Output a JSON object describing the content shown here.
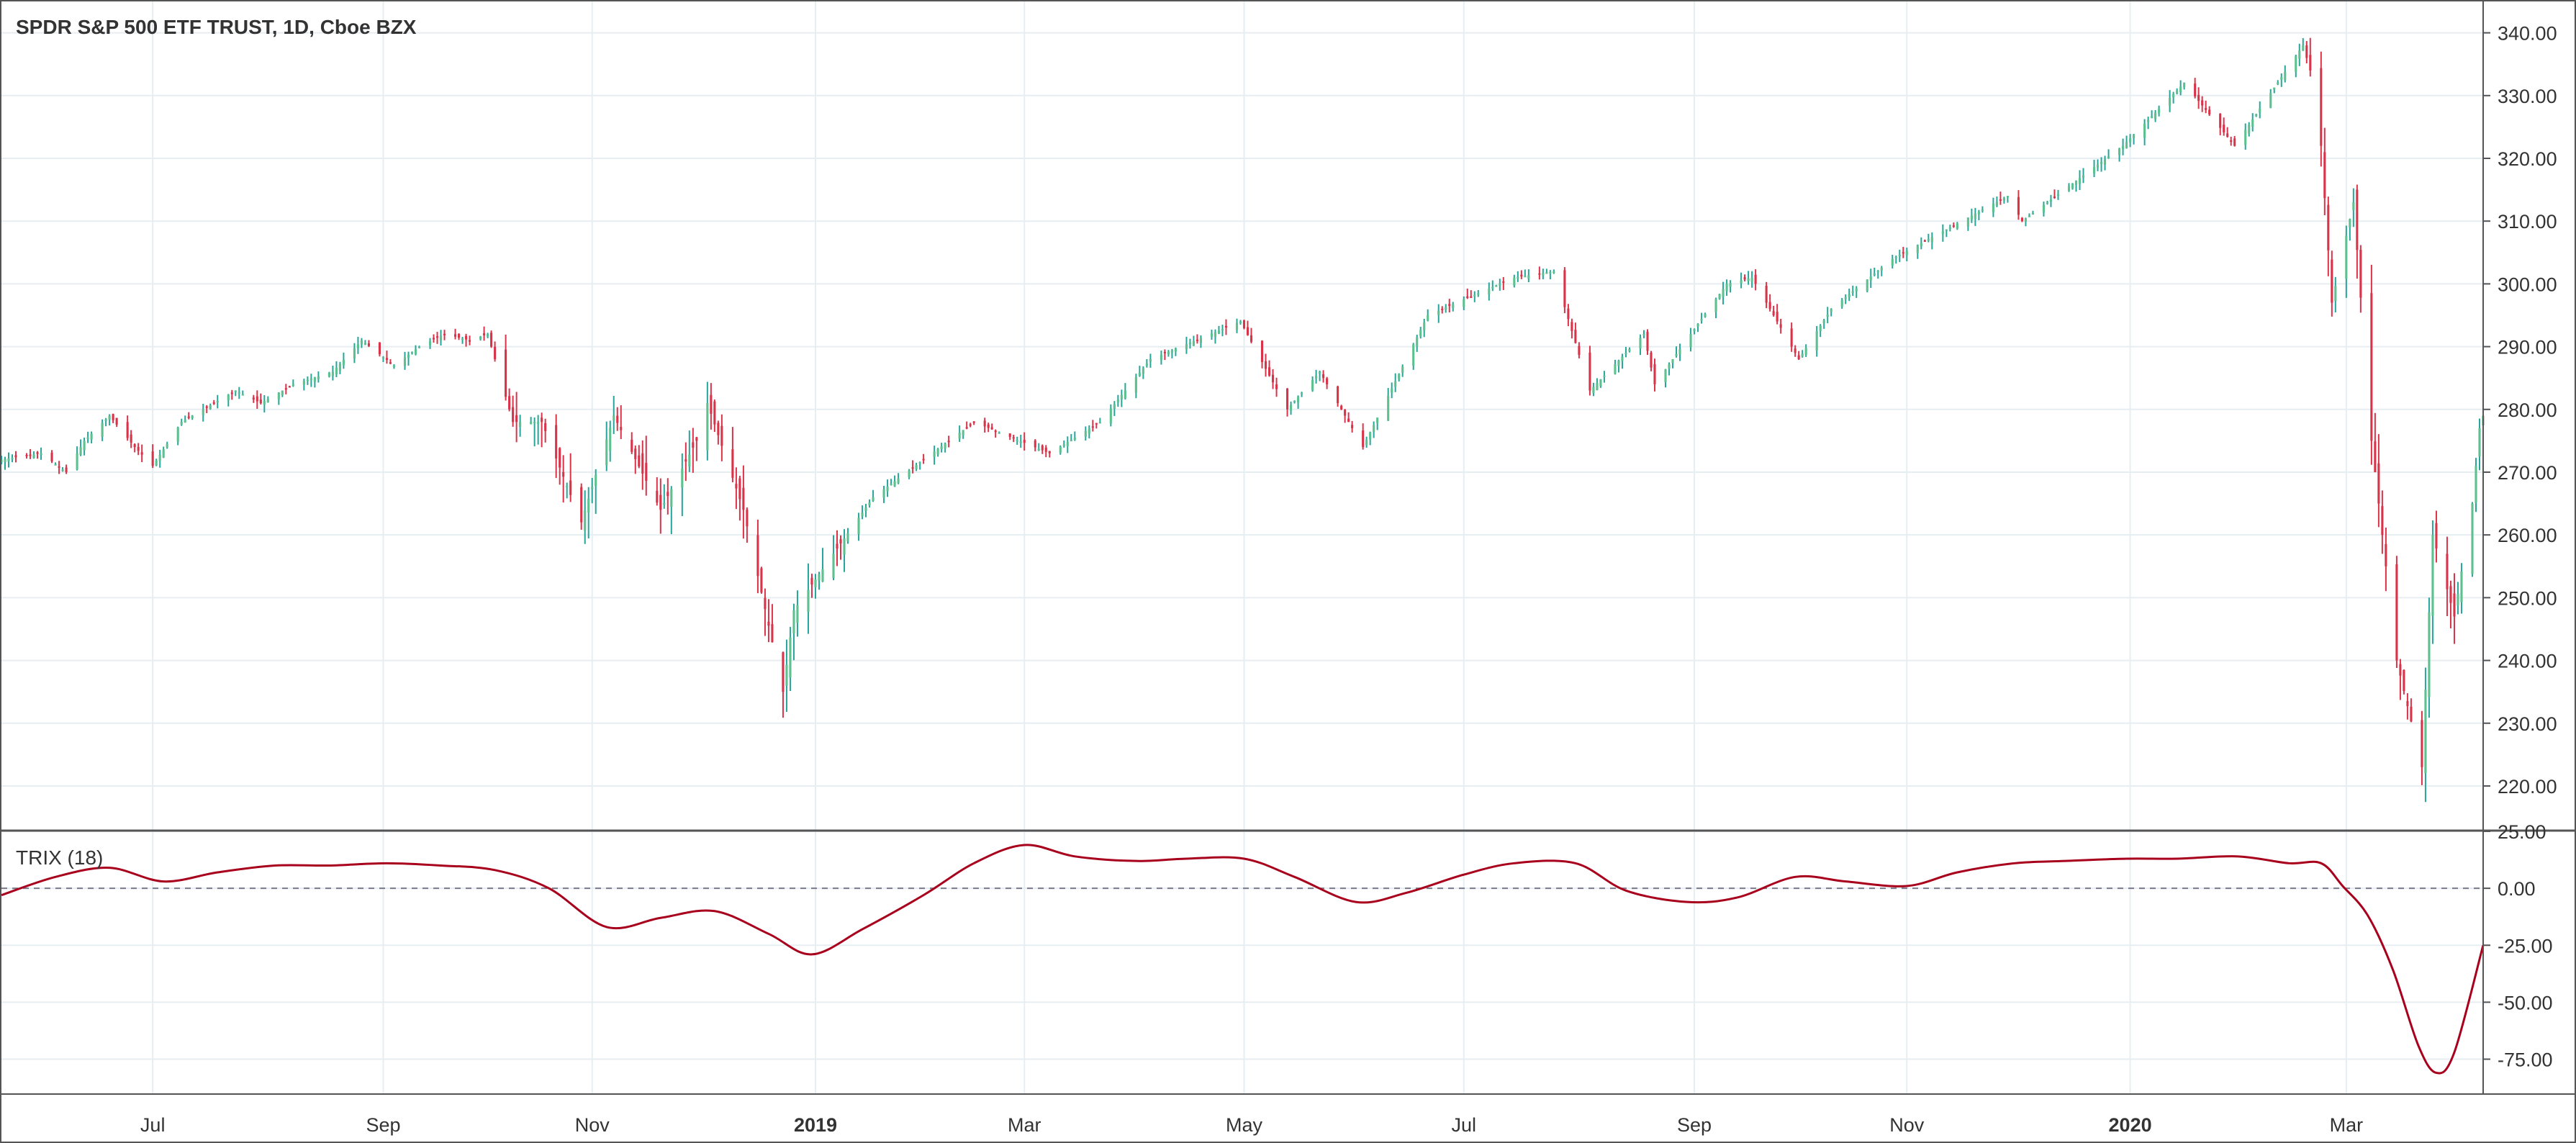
{
  "title": "SPDR S&P 500 ETF TRUST, 1D, Cboe BZX",
  "indicator_label": "TRIX (18)",
  "colors": {
    "up": "#26a69a",
    "up_fill": "#5cc08f",
    "down": "#d9334a",
    "trix_line": "#a8001c",
    "grid": "#e6eef2",
    "axis_text": "#333333",
    "border": "#555555",
    "zero_line": "#7a7a8a"
  },
  "chart_data": [
    {
      "type": "candlestick",
      "title": "SPDR S&P 500 ETF TRUST, 1D, Cboe BZX",
      "x_range": [
        "2018-05-21",
        "2020-04-09"
      ],
      "ylim": [
        213,
        345
      ],
      "y_ticks": [
        "220.00",
        "230.00",
        "240.00",
        "250.00",
        "260.00",
        "270.00",
        "280.00",
        "290.00",
        "300.00",
        "310.00",
        "320.00",
        "330.00",
        "340.00"
      ],
      "x_ticks": [
        {
          "label": "Jul",
          "date": "2018-07-02",
          "bold": false
        },
        {
          "label": "Sep",
          "date": "2018-09-04",
          "bold": false
        },
        {
          "label": "Nov",
          "date": "2018-11-01",
          "bold": false
        },
        {
          "label": "2019",
          "date": "2019-01-02",
          "bold": true
        },
        {
          "label": "Mar",
          "date": "2019-03-01",
          "bold": false
        },
        {
          "label": "May",
          "date": "2019-05-01",
          "bold": false
        },
        {
          "label": "Jul",
          "date": "2019-07-01",
          "bold": false
        },
        {
          "label": "Sep",
          "date": "2019-09-03",
          "bold": false
        },
        {
          "label": "Nov",
          "date": "2019-11-01",
          "bold": false
        },
        {
          "label": "2020",
          "date": "2020-01-02",
          "bold": true
        },
        {
          "label": "Mar",
          "date": "2020-03-02",
          "bold": false
        }
      ],
      "close_path": [
        [
          "2018-05-21",
          272
        ],
        [
          "2018-06-01",
          273
        ],
        [
          "2018-06-08",
          270
        ],
        [
          "2018-06-13",
          275
        ],
        [
          "2018-06-20",
          279
        ],
        [
          "2018-06-27",
          274
        ],
        [
          "2018-07-02",
          271
        ],
        [
          "2018-07-10",
          278
        ],
        [
          "2018-07-25",
          283
        ],
        [
          "2018-08-01",
          281
        ],
        [
          "2018-08-10",
          284
        ],
        [
          "2018-08-21",
          286
        ],
        [
          "2018-08-29",
          291
        ],
        [
          "2018-09-07",
          287
        ],
        [
          "2018-09-14",
          290
        ],
        [
          "2018-09-21",
          292
        ],
        [
          "2018-09-28",
          291
        ],
        [
          "2018-10-03",
          292
        ],
        [
          "2018-10-10",
          278
        ],
        [
          "2018-10-18",
          278
        ],
        [
          "2018-10-29",
          262
        ],
        [
          "2018-11-07",
          279
        ],
        [
          "2018-11-20",
          264
        ],
        [
          "2018-11-30",
          275
        ],
        [
          "2018-12-03",
          281
        ],
        [
          "2018-12-13",
          264
        ],
        [
          "2018-12-24",
          235
        ],
        [
          "2018-12-27",
          248
        ],
        [
          "2019-01-18",
          266
        ],
        [
          "2019-02-15",
          278
        ],
        [
          "2019-03-08",
          273
        ],
        [
          "2019-03-22",
          278
        ],
        [
          "2019-04-05",
          288
        ],
        [
          "2019-04-30",
          294
        ],
        [
          "2019-05-13",
          280
        ],
        [
          "2019-05-22",
          286
        ],
        [
          "2019-06-03",
          274
        ],
        [
          "2019-06-21",
          295
        ],
        [
          "2019-07-15",
          301
        ],
        [
          "2019-07-26",
          302
        ],
        [
          "2019-08-05",
          283
        ],
        [
          "2019-08-20",
          292
        ],
        [
          "2019-08-23",
          284
        ],
        [
          "2019-09-12",
          300
        ],
        [
          "2019-09-19",
          301
        ],
        [
          "2019-10-02",
          288
        ],
        [
          "2019-10-11",
          296
        ],
        [
          "2019-10-28",
          304
        ],
        [
          "2019-11-29",
          314
        ],
        [
          "2019-12-03",
          310
        ],
        [
          "2019-12-31",
          322
        ],
        [
          "2020-01-17",
          332
        ],
        [
          "2020-01-31",
          322
        ],
        [
          "2020-02-19",
          338
        ],
        [
          "2020-02-21",
          334
        ],
        [
          "2020-02-24",
          322
        ],
        [
          "2020-02-27",
          297
        ],
        [
          "2020-03-04",
          313
        ],
        [
          "2020-03-09",
          275
        ],
        [
          "2020-03-16",
          240
        ],
        [
          "2020-03-23",
          223
        ],
        [
          "2020-03-26",
          260
        ],
        [
          "2020-04-01",
          247
        ],
        [
          "2020-04-06",
          265
        ],
        [
          "2020-04-08",
          277
        ],
        [
          "2020-04-09",
          279
        ]
      ]
    },
    {
      "type": "line",
      "series": [
        {
          "name": "TRIX (18)",
          "values": "see x / y"
        }
      ],
      "ylim": [
        -90,
        25
      ],
      "y_ticks": [
        "25.00",
        "0.00",
        "-25.00",
        "-50.00",
        "-75.00"
      ],
      "zero_line": 0,
      "x": [
        "2018-05-21",
        "2018-06-05",
        "2018-06-20",
        "2018-07-05",
        "2018-07-20",
        "2018-08-05",
        "2018-08-20",
        "2018-09-05",
        "2018-09-20",
        "2018-10-05",
        "2018-10-20",
        "2018-11-05",
        "2018-11-20",
        "2018-12-05",
        "2018-12-20",
        "2019-01-01",
        "2019-01-15",
        "2019-02-01",
        "2019-02-15",
        "2019-03-01",
        "2019-03-15",
        "2019-04-01",
        "2019-04-15",
        "2019-05-01",
        "2019-05-15",
        "2019-06-01",
        "2019-06-15",
        "2019-07-01",
        "2019-07-15",
        "2019-08-01",
        "2019-08-15",
        "2019-09-01",
        "2019-09-15",
        "2019-10-01",
        "2019-10-15",
        "2019-11-01",
        "2019-11-15",
        "2019-12-01",
        "2019-12-15",
        "2020-01-01",
        "2020-01-15",
        "2020-02-01",
        "2020-02-15",
        "2020-02-24",
        "2020-03-01",
        "2020-03-08",
        "2020-03-15",
        "2020-03-22",
        "2020-03-27",
        "2020-04-01",
        "2020-04-09"
      ],
      "y": [
        -3,
        5,
        9,
        3,
        7,
        10,
        10,
        11,
        10,
        8,
        0,
        -17,
        -13,
        -10,
        -20,
        -29,
        -18,
        -3,
        11,
        19,
        14,
        12,
        13,
        13,
        5,
        -6,
        -2,
        6,
        11,
        11,
        -1,
        -6,
        -4,
        5,
        3,
        1,
        7,
        11,
        12,
        13,
        13,
        14,
        11,
        11,
        1,
        -12,
        -36,
        -69,
        -81,
        -72,
        -25
      ]
    }
  ]
}
